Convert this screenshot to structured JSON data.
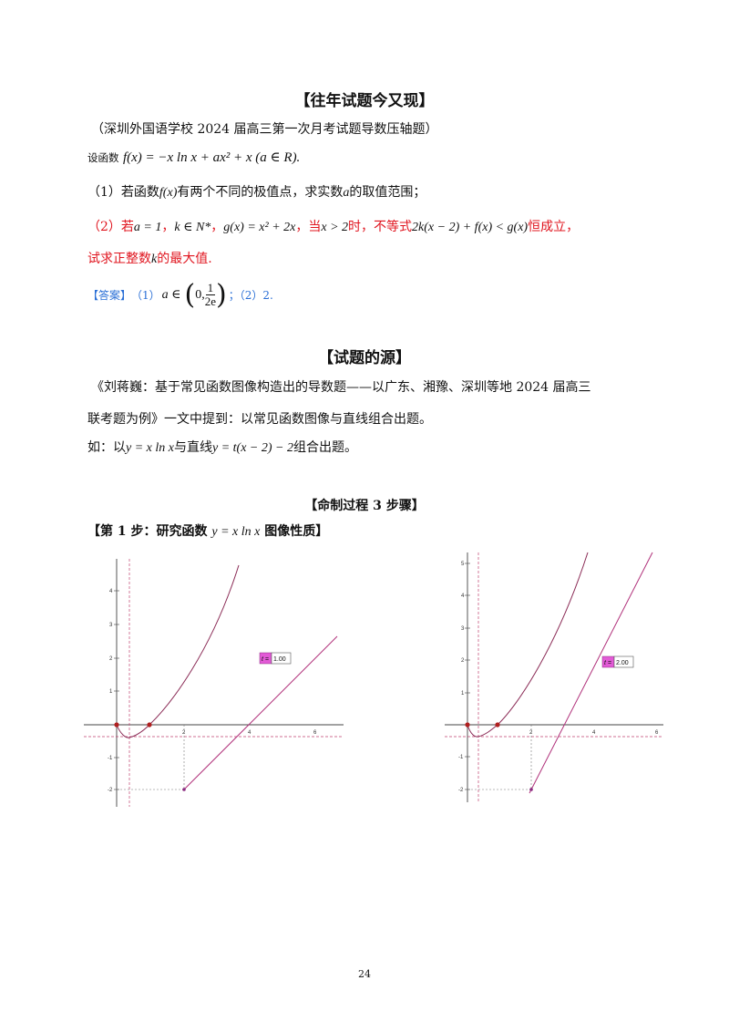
{
  "sec1": {
    "title": "【往年试题今又现】"
  },
  "source_line": "（深圳外国语学校 2024 届高三第一次月考试题导数压轴题）",
  "setup": {
    "prefix": "设函数",
    "formula": "f(x) = −x ln x + ax² + x (a ∈ R)."
  },
  "q1": {
    "a": "（1）若函数",
    "fx": "f(x)",
    "b": "有两个不同的极值点，求实数",
    "var": "a",
    "c": "的取值范围；"
  },
  "q2": {
    "p1": "（2）若",
    "m1": "a = 1",
    "p2": "，",
    "m2": "k ∈ N*",
    "p3": "，",
    "m3": "g(x) = x² + 2x",
    "p4": "，当",
    "m4": "x > 2",
    "p5": "时，不等式",
    "m5": "2k(x − 2) + f(x) < g(x)",
    "p6": "恒成立，",
    "line2a": "试求正整数",
    "line2var": "k",
    "line2b": "的最大值."
  },
  "answer": {
    "label": "【答案】",
    "part1": "（1）",
    "expr_a": "a ∈",
    "zero": "0,",
    "num": "1",
    "den": "2e",
    "part2": "；（2）2."
  },
  "sec2": {
    "title": "【试题的源】"
  },
  "source_para": {
    "line1": "《刘蒋巍：基于常见函数图像构造出的导数题——以广东、湘豫、深圳等地 2024 届高三",
    "line2": "联考题为例》一文中提到：以常见函数图像与直线组合出题。",
    "line3_a": "如：以",
    "line3_m1": "y = x ln x",
    "line3_b": "与直线",
    "line3_m2": "y = t(x − 2) − 2",
    "line3_c": "组合出题。"
  },
  "sec3": {
    "title": "【命制过程 3 步骤】"
  },
  "step1": {
    "a": "【第 1 步：研究函数",
    "m": "y = x ln x",
    "b": "图像性质】"
  },
  "graph_left": {
    "slider_label": "t =",
    "slider_value": "1.00",
    "y_ticks": [
      "4",
      "3",
      "2",
      "1",
      "-1",
      "-2"
    ],
    "x_ticks": [
      "2",
      "4",
      "6"
    ]
  },
  "graph_right": {
    "slider_label": "t =",
    "slider_value": "2.00",
    "y_ticks": [
      "5",
      "4",
      "3",
      "2",
      "1",
      "-1",
      "-2"
    ],
    "x_ticks": [
      "2",
      "4",
      "6"
    ]
  },
  "page_number": "24",
  "colors": {
    "red": "#e0141e",
    "blue": "#2a6fd6",
    "curve": "#8a2a55",
    "line": "#b0307a",
    "slider": "#e25ad6"
  }
}
